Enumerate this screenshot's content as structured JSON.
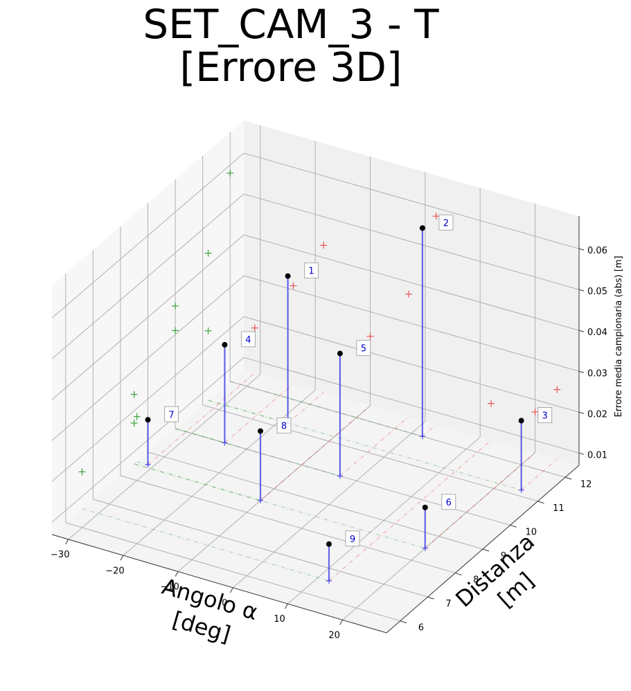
{
  "chart_data": {
    "type": "scatter3d",
    "title_lines": [
      "SET_CAM_3 - T",
      "[Errore 3D]"
    ],
    "xlabel_lines": [
      "Angolo α",
      "[deg]"
    ],
    "ylabel_lines": [
      "Distanza",
      "[m]"
    ],
    "zlabel": "Errore media campionaria (abs) [m]",
    "x_ticks": [
      "−30",
      "−20",
      "−10",
      "0",
      "10",
      "20"
    ],
    "y_ticks": [
      "6",
      "7",
      "8",
      "9",
      "10",
      "11",
      "12"
    ],
    "z_ticks": [
      "0.01",
      "0.02",
      "0.03",
      "0.04",
      "0.05",
      "0.06"
    ],
    "points": [
      {
        "label": "1",
        "x": -18.5,
        "y": 11.2,
        "z": 0.043
      },
      {
        "label": "2",
        "x": 2.0,
        "y": 12.0,
        "z": 0.058
      },
      {
        "label": "3",
        "x": 24.0,
        "y": 11.2,
        "z": 0.024
      },
      {
        "label": "4",
        "x": -24.0,
        "y": 10.0,
        "z": 0.031
      },
      {
        "label": "5",
        "x": -3.0,
        "y": 10.0,
        "z": 0.037
      },
      {
        "label": "6",
        "x": 20.0,
        "y": 8.5,
        "z": 0.017
      },
      {
        "label": "7",
        "x": -31.0,
        "y": 8.6,
        "z": 0.018
      },
      {
        "label": "8",
        "x": -10.0,
        "y": 8.5,
        "z": 0.024
      },
      {
        "label": "9",
        "x": 12.0,
        "y": 6.6,
        "z": 0.016
      }
    ],
    "colors": {
      "stem": "#4a4ae8",
      "point": "#000000",
      "label_text": "#0000cc",
      "x_projection": "#e85050",
      "y_projection": "#3aa03a",
      "pane": "#f2f2f2",
      "grid": "#b0b0b0"
    }
  }
}
